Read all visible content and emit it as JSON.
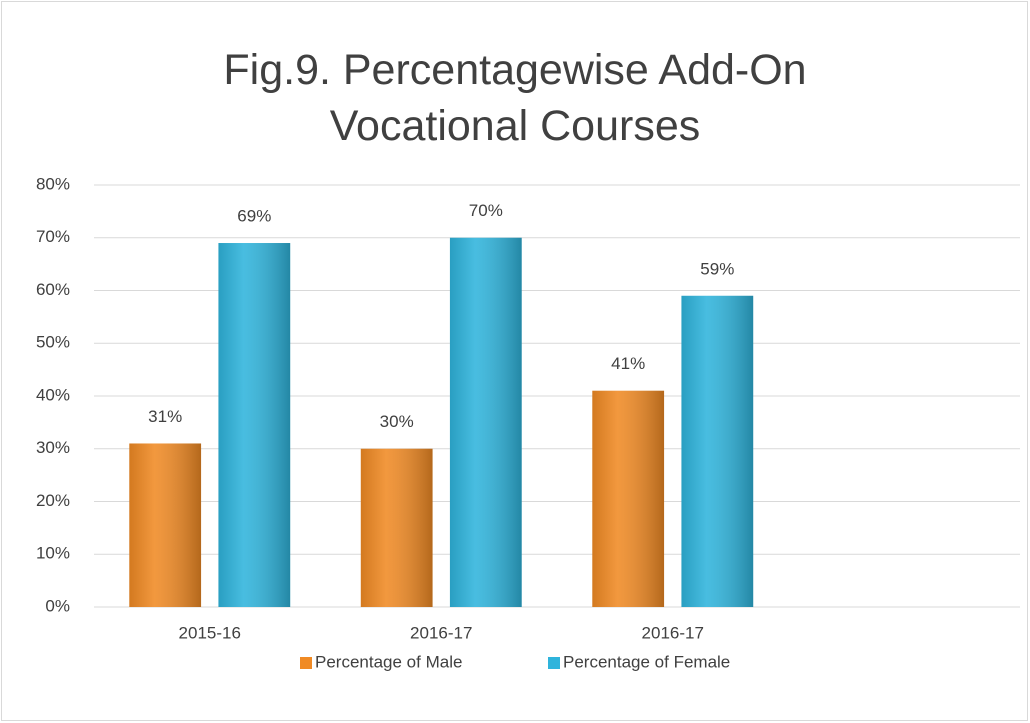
{
  "chart_data": {
    "type": "bar",
    "title": "Fig.9. Percentagewise Add-On Vocational Courses",
    "categories": [
      "2015-16",
      "2016-17",
      "2016-17",
      null
    ],
    "series": [
      {
        "name": "Percentage of Male",
        "color": "#f08a24",
        "values": [
          31,
          30,
          41,
          null
        ],
        "value_labels": [
          "31%",
          "30%",
          "41%",
          null
        ]
      },
      {
        "name": "Percentage of Female",
        "color": "#2fb4dc",
        "values": [
          69,
          70,
          59,
          null
        ],
        "value_labels": [
          "69%",
          "70%",
          "59%",
          null
        ]
      }
    ],
    "ylim": [
      0,
      80
    ],
    "yticks": [
      {
        "value": 0,
        "label": "0%"
      },
      {
        "value": 10,
        "label": "10%"
      },
      {
        "value": 20,
        "label": "20%"
      },
      {
        "value": 30,
        "label": "30%"
      },
      {
        "value": 40,
        "label": "40%"
      },
      {
        "value": 50,
        "label": "50%"
      },
      {
        "value": 60,
        "label": "60%"
      },
      {
        "value": 70,
        "label": "70%"
      },
      {
        "value": 80,
        "label": "80%"
      }
    ],
    "grid": true,
    "legend": "bottom"
  }
}
